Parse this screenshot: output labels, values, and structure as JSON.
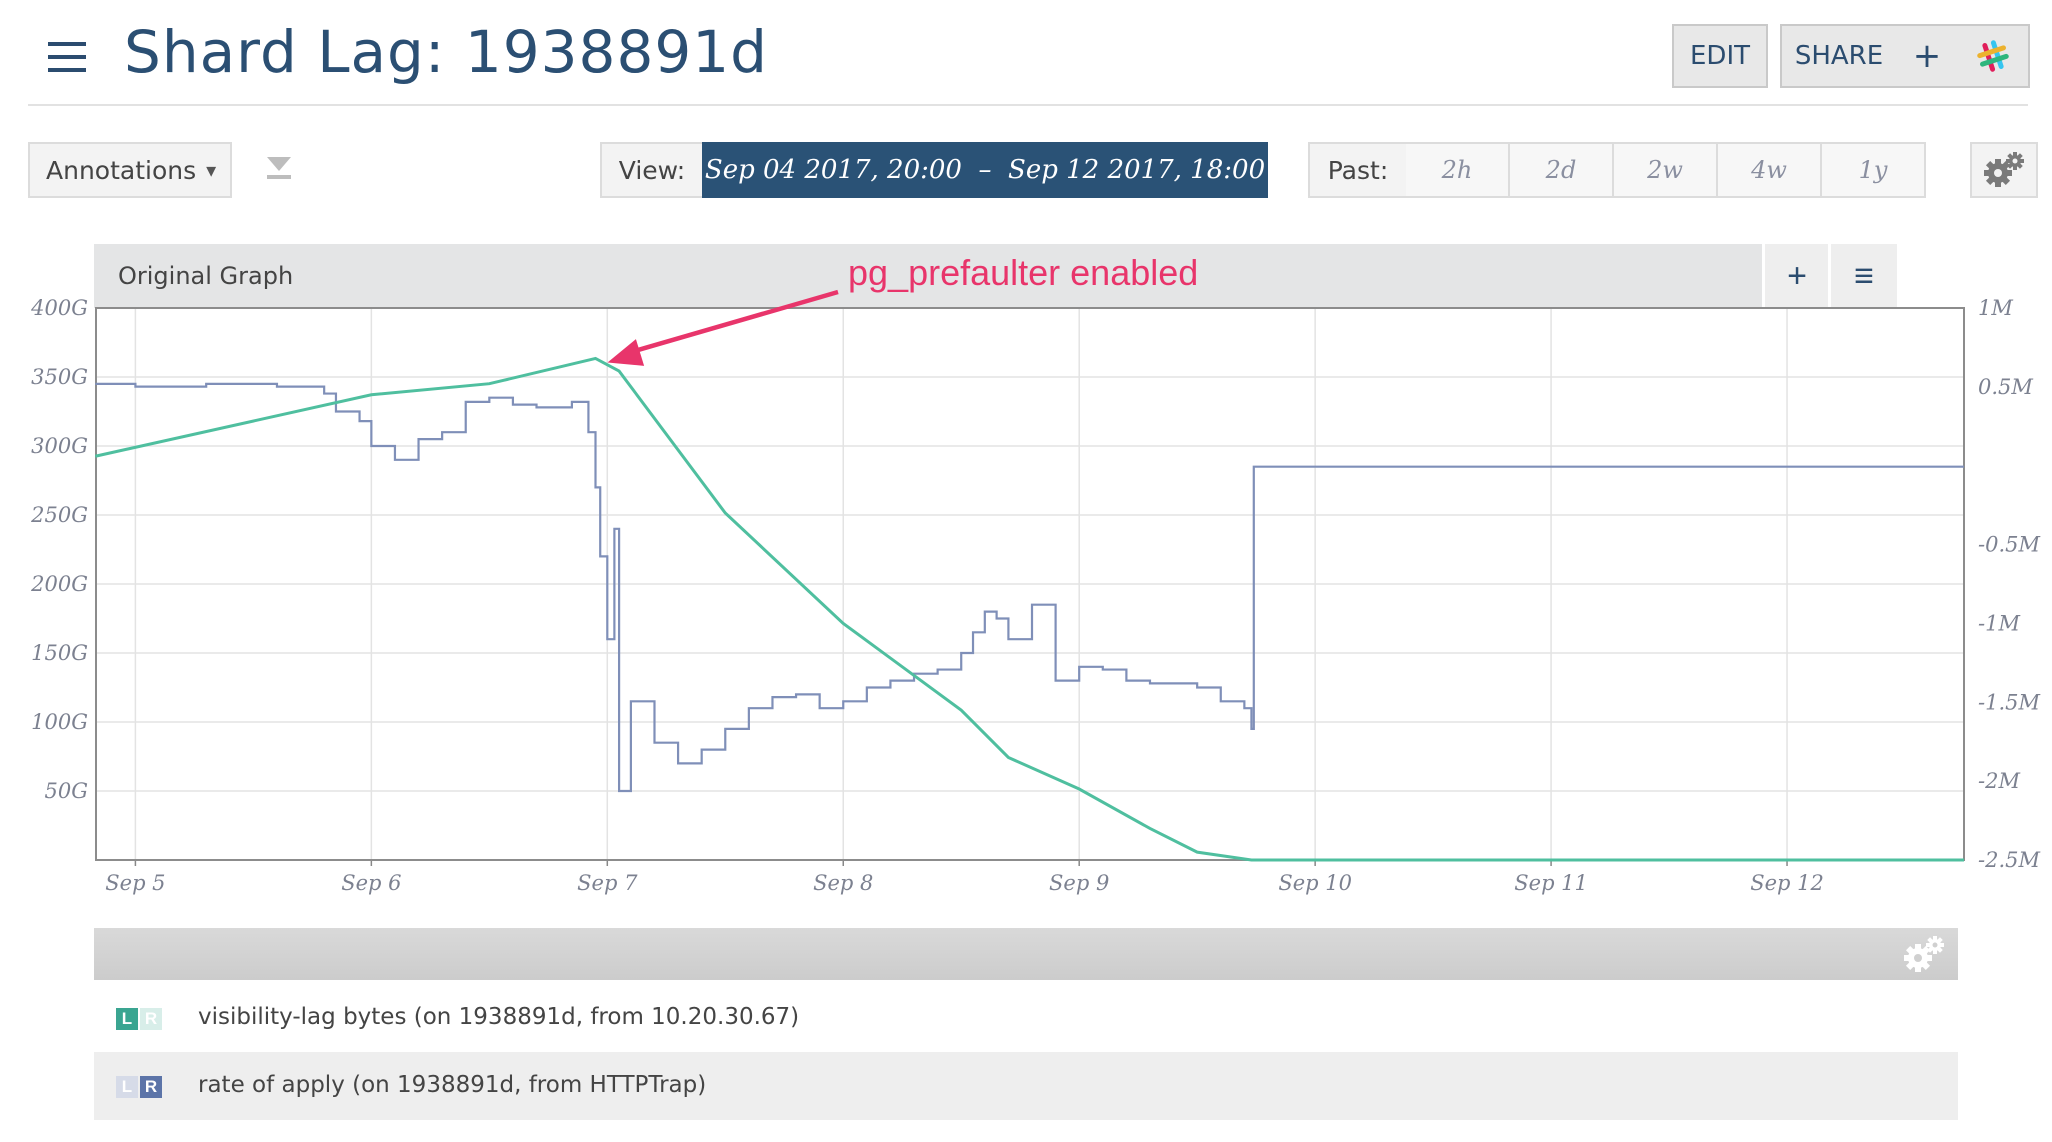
{
  "header": {
    "title": "Shard Lag: 1938891d",
    "edit_label": "EDIT",
    "share_label": "SHARE",
    "add_label": "+",
    "slack_icon": "slack-icon",
    "menu_icon": "hamburger-menu-icon"
  },
  "toolbar": {
    "annotations_label": "Annotations",
    "annotations_caret": "▾",
    "view_label": "View:",
    "range_label": "Sep 04 2017, 20:00  –  Sep 12 2017, 18:00",
    "past_label": "Past:",
    "past_options": [
      "2h",
      "2d",
      "2w",
      "4w",
      "1y"
    ],
    "settings_icon": "gears-icon"
  },
  "graph": {
    "title": "Original Graph",
    "add_label": "+",
    "menu_label": "≡",
    "annotation": "pg_prefaulter enabled"
  },
  "colors": {
    "lag_series": "#7f8fb8",
    "rate_series": "#4fbf9f",
    "annotation": "#e8356b",
    "brand_dark": "#2a5276"
  },
  "chart_data": {
    "type": "line",
    "x_ticks": [
      "Sep 5",
      "Sep 6",
      "Sep 7",
      "Sep 8",
      "Sep 9",
      "Sep 10",
      "Sep 11",
      "Sep 12"
    ],
    "left_ticks": [
      "400G",
      "350G",
      "300G",
      "250G",
      "200G",
      "150G",
      "100G",
      "50G"
    ],
    "right_ticks": [
      "1M",
      "0.5M",
      "-0.5M",
      "-1M",
      "-1.5M",
      "-2M",
      "-2.5M"
    ],
    "left_ylim": [
      0,
      400
    ],
    "right_ylim": [
      -2.5,
      1
    ],
    "xlim_days": [
      "Sep 04 2017, 20:00",
      "Sep 12 2017, 18:00"
    ],
    "grid": true,
    "series": [
      {
        "name": "visibility-lag bytes (on 1938891d, from 10.20.30.67)",
        "axis": "left",
        "x": [
          4.83,
          5.0,
          5.3,
          5.6,
          5.8,
          5.85,
          5.95,
          6.0,
          6.1,
          6.2,
          6.3,
          6.4,
          6.5,
          6.6,
          6.7,
          6.85,
          6.92,
          6.95,
          6.97,
          7.0,
          7.03,
          7.05,
          7.1,
          7.2,
          7.3,
          7.4,
          7.5,
          7.6,
          7.7,
          7.8,
          7.9,
          8.0,
          8.1,
          8.2,
          8.3,
          8.4,
          8.5,
          8.55,
          8.6,
          8.65,
          8.7,
          8.8,
          8.9,
          9.0,
          9.1,
          9.2,
          9.3,
          9.5,
          9.6,
          9.7,
          9.73,
          9.74,
          10.0,
          11.0,
          12.0,
          12.75
        ],
        "y": [
          345,
          343,
          345,
          343,
          338,
          325,
          318,
          300,
          290,
          305,
          310,
          332,
          335,
          330,
          328,
          332,
          310,
          270,
          220,
          160,
          240,
          50,
          115,
          85,
          70,
          80,
          95,
          110,
          118,
          120,
          110,
          115,
          125,
          130,
          135,
          138,
          150,
          165,
          180,
          175,
          160,
          185,
          130,
          140,
          138,
          130,
          128,
          125,
          115,
          110,
          95,
          285,
          285,
          285,
          285,
          285
        ]
      },
      {
        "name": "rate of apply (on 1938891d, from HTTPTrap)",
        "axis": "right",
        "x": [
          4.83,
          6.0,
          6.5,
          6.95,
          7.05,
          7.5,
          8.0,
          8.5,
          8.7,
          9.0,
          9.3,
          9.5,
          9.73,
          12.75
        ],
        "y": [
          0.06,
          0.45,
          0.52,
          0.68,
          0.6,
          -0.3,
          -1.0,
          -1.55,
          -1.85,
          -2.05,
          -2.3,
          -2.45,
          -2.6,
          -2.6
        ]
      }
    ]
  },
  "legend": {
    "settings_icon": "gears-icon",
    "items": [
      {
        "left": "L",
        "right": "R",
        "label": "visibility-lag bytes (on 1938891d, from 10.20.30.67)"
      },
      {
        "left": "L",
        "right": "R",
        "label": "rate of apply (on 1938891d, from HTTPTrap)"
      }
    ]
  }
}
